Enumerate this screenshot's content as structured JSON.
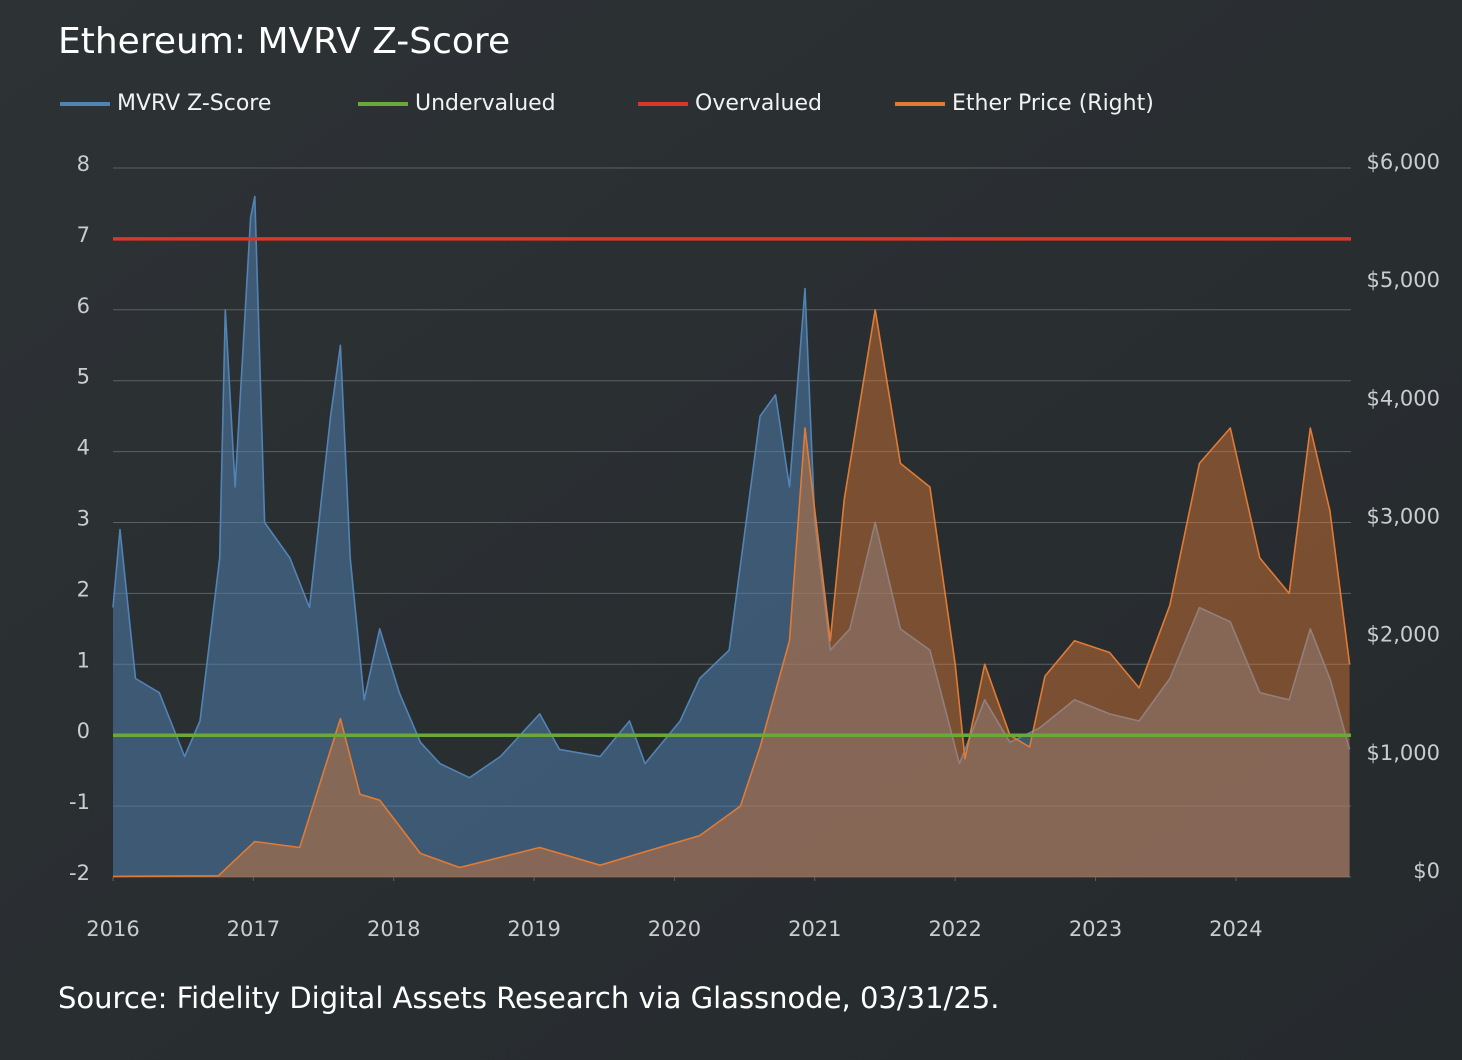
{
  "chart_data": {
    "type": "line",
    "title": "Ethereum: MVRV Z-Score",
    "source": "Source: Fidelity Digital Assets Research via Glassnode, 03/31/25.",
    "xlim": [
      2016,
      2024.82
    ],
    "xticks": [
      2016,
      2017,
      2018,
      2019,
      2020,
      2021,
      2022,
      2023,
      2024
    ],
    "ylim": [
      -2,
      8
    ],
    "yticks": [
      -2,
      -1,
      0,
      1,
      2,
      3,
      4,
      5,
      6,
      7,
      8
    ],
    "y2lim": [
      0,
      6000
    ],
    "y2ticks": [
      {
        "value": 0,
        "label": "$0"
      },
      {
        "value": 1000,
        "label": "$1,000"
      },
      {
        "value": 2000,
        "label": "$2,000"
      },
      {
        "value": 3000,
        "label": "$3,000"
      },
      {
        "value": 4000,
        "label": "$4,000"
      },
      {
        "value": 5000,
        "label": "$5,000"
      },
      {
        "value": 6000,
        "label": "$6,000"
      }
    ],
    "grid": true,
    "legend": "top",
    "series": [
      {
        "name": "MVRV Z-Score",
        "color": "#5283b5",
        "area": true,
        "x": [
          2016.0,
          2016.05,
          2016.16,
          2016.33,
          2016.51,
          2016.62,
          2016.76,
          2016.8,
          2016.87,
          2016.98,
          2017.01,
          2017.08,
          2017.26,
          2017.4,
          2017.55,
          2017.62,
          2017.69,
          2017.79,
          2017.9,
          2018.04,
          2018.19,
          2018.33,
          2018.54,
          2018.76,
          2019.04,
          2019.18,
          2019.47,
          2019.68,
          2019.79,
          2020.04,
          2020.18,
          2020.39,
          2020.61,
          2020.72,
          2020.82,
          2020.93,
          2021.0,
          2021.11,
          2021.25,
          2021.43,
          2021.61,
          2021.82,
          2022.03,
          2022.21,
          2022.39,
          2022.6,
          2022.85,
          2023.1,
          2023.31,
          2023.53,
          2023.74,
          2023.96,
          2024.17,
          2024.38,
          2024.53,
          2024.67,
          2024.81
        ],
        "values": [
          1.8,
          2.9,
          0.8,
          0.6,
          -0.3,
          0.2,
          2.5,
          6.0,
          3.5,
          7.3,
          7.6,
          3.0,
          2.5,
          1.8,
          4.5,
          5.5,
          2.5,
          0.5,
          1.5,
          0.6,
          -0.1,
          -0.4,
          -0.6,
          -0.3,
          0.3,
          -0.2,
          -0.3,
          0.2,
          -0.4,
          0.2,
          0.8,
          1.2,
          4.5,
          4.8,
          3.5,
          6.3,
          3.0,
          1.2,
          1.5,
          3.0,
          1.5,
          1.2,
          -0.4,
          0.5,
          -0.1,
          0.1,
          0.5,
          0.3,
          0.2,
          0.8,
          1.8,
          1.6,
          0.6,
          0.5,
          1.5,
          0.8,
          -0.2
        ]
      },
      {
        "name": "Undervalued",
        "color": "#6aa83a",
        "x": [
          2016,
          2024.82
        ],
        "values": [
          0,
          0
        ]
      },
      {
        "name": "Overvalued",
        "color": "#d9372a",
        "x": [
          2016,
          2024.82
        ],
        "values": [
          7,
          7
        ]
      },
      {
        "name": "Ether Price (Right)",
        "color": "#e07b35",
        "axis": "y2",
        "area": true,
        "x": [
          2016.0,
          2016.75,
          2017.01,
          2017.33,
          2017.62,
          2017.76,
          2017.9,
          2018.19,
          2018.47,
          2019.04,
          2019.47,
          2019.75,
          2020.18,
          2020.47,
          2020.61,
          2020.82,
          2020.93,
          2021.11,
          2021.21,
          2021.43,
          2021.61,
          2021.82,
          2022.0,
          2022.07,
          2022.21,
          2022.39,
          2022.53,
          2022.64,
          2022.85,
          2023.1,
          2023.31,
          2023.53,
          2023.74,
          2023.96,
          2024.17,
          2024.38,
          2024.53,
          2024.67,
          2024.81
        ],
        "values": [
          5,
          10,
          300,
          250,
          1340,
          700,
          650,
          200,
          80,
          250,
          100,
          200,
          350,
          600,
          1100,
          2000,
          3800,
          2000,
          3200,
          4800,
          3500,
          3300,
          1800,
          1000,
          1800,
          1200,
          1100,
          1700,
          2000,
          1900,
          1600,
          2300,
          3500,
          3800,
          2700,
          2400,
          3800,
          3100,
          1800
        ]
      }
    ]
  }
}
